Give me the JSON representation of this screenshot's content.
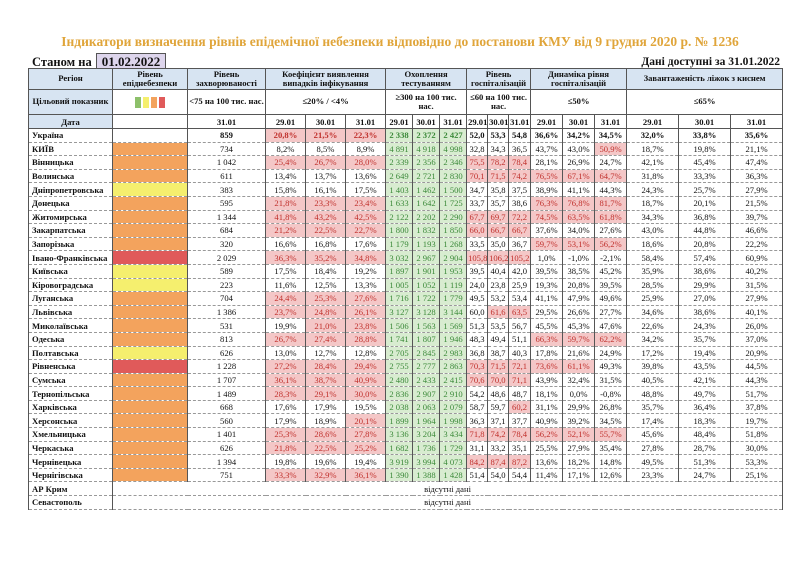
{
  "title": "Індикатори визначення рівнів епідемічної небезпеки відповідно до постанови КМУ від 9 грудня 2020 р. № 1236",
  "as_of_label": "Станом на",
  "as_of_date": "01.02.2022",
  "data_available": "Дані доступні за 31.01.2022",
  "headers": {
    "region": "Регіон",
    "level": "Рівень епіднебезпеки",
    "cases": "Рівень захворюваності",
    "infection": "Коефіцієнт виявлення випадків інфікування",
    "testing": "Охоплення тестуванням",
    "hosp": "Рівень госпіталізацій",
    "dynamics": "Динаміка рівня госпіталізацій",
    "oxygen": "Завантаженість ліжок з киснем"
  },
  "targets": {
    "label": "Цільовий показник",
    "cases": "<75 на 100 тис. нас.",
    "infection": "≤20% / <4%",
    "testing": "≥300 на 100 тис. нас.",
    "hosp": "≤60 на 100 тис. нас.",
    "dynamics": "≤50%",
    "oxygen": "≤65%"
  },
  "level_colors": {
    "green": "#8dc06a",
    "yellow": "#f5ef6e",
    "orange": "#f3a35d",
    "red": "#e05a5a"
  },
  "date_row": {
    "label": "Дата",
    "cases": "31.01",
    "d1": "29.01",
    "d2": "30.01",
    "d3": "31.01"
  },
  "no_data": "відсутні дані",
  "rows": [
    {
      "name": "Україна",
      "level": "",
      "cases": "859",
      "inf": [
        "20,8%",
        "21,5%",
        "22,3%"
      ],
      "test": [
        "2 338",
        "2 372",
        "2 427"
      ],
      "hosp": [
        "52,0",
        "53,3",
        "54,8"
      ],
      "dyn": [
        "36,6%",
        "34,2%",
        "34,5%"
      ],
      "oxy": [
        "32,0%",
        "33,8%",
        "35,6%"
      ],
      "infR": [
        1,
        1,
        1
      ],
      "hospR": [
        0,
        0,
        0
      ],
      "dynR": [
        0,
        0,
        0
      ]
    },
    {
      "name": "КИЇВ",
      "level": "orange",
      "cases": "734",
      "inf": [
        "8,2%",
        "8,5%",
        "8,9%"
      ],
      "test": [
        "4 891",
        "4 918",
        "4 998"
      ],
      "hosp": [
        "32,8",
        "34,3",
        "36,5"
      ],
      "dyn": [
        "43,7%",
        "43,0%",
        "50,9%"
      ],
      "oxy": [
        "18,7%",
        "19,8%",
        "21,1%"
      ],
      "infR": [
        0,
        0,
        0
      ],
      "hospR": [
        0,
        0,
        0
      ],
      "dynR": [
        0,
        0,
        1
      ]
    },
    {
      "name": "Вінницька",
      "level": "orange",
      "cases": "1 042",
      "inf": [
        "25,4%",
        "26,7%",
        "28,0%"
      ],
      "test": [
        "2 339",
        "2 356",
        "2 346"
      ],
      "hosp": [
        "75,5",
        "78,2",
        "78,4"
      ],
      "dyn": [
        "28,1%",
        "26,9%",
        "24,7%"
      ],
      "oxy": [
        "42,1%",
        "45,4%",
        "47,4%"
      ],
      "infR": [
        1,
        1,
        1
      ],
      "hospR": [
        1,
        1,
        1
      ],
      "dynR": [
        0,
        0,
        0
      ]
    },
    {
      "name": "Волинська",
      "level": "orange",
      "cases": "611",
      "inf": [
        "13,4%",
        "13,7%",
        "13,6%"
      ],
      "test": [
        "2 649",
        "2 721",
        "2 830"
      ],
      "hosp": [
        "70,1",
        "71,5",
        "74,2"
      ],
      "dyn": [
        "76,5%",
        "67,1%",
        "64,7%"
      ],
      "oxy": [
        "31,8%",
        "33,3%",
        "36,3%"
      ],
      "infR": [
        0,
        0,
        0
      ],
      "hospR": [
        1,
        1,
        1
      ],
      "dynR": [
        1,
        1,
        1
      ]
    },
    {
      "name": "Дніпропетровська",
      "level": "yellow",
      "cases": "383",
      "inf": [
        "15,8%",
        "16,1%",
        "17,5%"
      ],
      "test": [
        "1 403",
        "1 462",
        "1 500"
      ],
      "hosp": [
        "34,7",
        "35,8",
        "37,5"
      ],
      "dyn": [
        "38,9%",
        "41,1%",
        "44,3%"
      ],
      "oxy": [
        "24,3%",
        "25,7%",
        "27,9%"
      ],
      "infR": [
        0,
        0,
        0
      ],
      "hospR": [
        0,
        0,
        0
      ],
      "dynR": [
        0,
        0,
        0
      ]
    },
    {
      "name": "Донецька",
      "level": "orange",
      "cases": "595",
      "inf": [
        "21,8%",
        "23,3%",
        "23,4%"
      ],
      "test": [
        "1 633",
        "1 642",
        "1 725"
      ],
      "hosp": [
        "33,7",
        "35,7",
        "38,6"
      ],
      "dyn": [
        "76,3%",
        "76,8%",
        "81,7%"
      ],
      "oxy": [
        "18,7%",
        "20,1%",
        "21,5%"
      ],
      "infR": [
        1,
        1,
        1
      ],
      "hospR": [
        0,
        0,
        0
      ],
      "dynR": [
        1,
        1,
        1
      ]
    },
    {
      "name": "Житомирська",
      "level": "orange",
      "cases": "1 344",
      "inf": [
        "41,8%",
        "43,2%",
        "42,5%"
      ],
      "test": [
        "2 122",
        "2 202",
        "2 290"
      ],
      "hosp": [
        "67,7",
        "69,7",
        "72,2"
      ],
      "dyn": [
        "74,5%",
        "63,5%",
        "61,8%"
      ],
      "oxy": [
        "34,3%",
        "36,8%",
        "39,7%"
      ],
      "infR": [
        1,
        1,
        1
      ],
      "hospR": [
        1,
        1,
        1
      ],
      "dynR": [
        1,
        1,
        1
      ]
    },
    {
      "name": "Закарпатська",
      "level": "orange",
      "cases": "684",
      "inf": [
        "21,2%",
        "22,5%",
        "22,7%"
      ],
      "test": [
        "1 800",
        "1 832",
        "1 850"
      ],
      "hosp": [
        "66,0",
        "66,7",
        "66,7"
      ],
      "dyn": [
        "37,6%",
        "34,0%",
        "27,6%"
      ],
      "oxy": [
        "43,0%",
        "44,8%",
        "46,6%"
      ],
      "infR": [
        1,
        1,
        1
      ],
      "hospR": [
        1,
        1,
        1
      ],
      "dynR": [
        0,
        0,
        0
      ]
    },
    {
      "name": "Запорізька",
      "level": "orange",
      "cases": "320",
      "inf": [
        "16,6%",
        "16,8%",
        "17,6%"
      ],
      "test": [
        "1 179",
        "1 193",
        "1 268"
      ],
      "hosp": [
        "33,5",
        "35,0",
        "36,7"
      ],
      "dyn": [
        "59,7%",
        "53,1%",
        "56,2%"
      ],
      "oxy": [
        "18,6%",
        "20,8%",
        "22,2%"
      ],
      "infR": [
        0,
        0,
        0
      ],
      "hospR": [
        0,
        0,
        0
      ],
      "dynR": [
        1,
        1,
        1
      ]
    },
    {
      "name": "Івано-Франківська",
      "level": "red",
      "cases": "2 029",
      "inf": [
        "36,3%",
        "35,2%",
        "34,8%"
      ],
      "test": [
        "3 032",
        "2 967",
        "2 904"
      ],
      "hosp": [
        "105,8",
        "106,2",
        "105,2"
      ],
      "dyn": [
        "1,0%",
        "-1,0%",
        "-2,1%"
      ],
      "oxy": [
        "58,4%",
        "57,4%",
        "60,9%"
      ],
      "infR": [
        1,
        1,
        1
      ],
      "hospR": [
        1,
        1,
        1
      ],
      "dynR": [
        0,
        0,
        0
      ]
    },
    {
      "name": "Київська",
      "level": "yellow",
      "cases": "589",
      "inf": [
        "17,5%",
        "18,4%",
        "19,2%"
      ],
      "test": [
        "1 897",
        "1 901",
        "1 953"
      ],
      "hosp": [
        "39,5",
        "40,4",
        "42,0"
      ],
      "dyn": [
        "39,5%",
        "38,5%",
        "45,2%"
      ],
      "oxy": [
        "35,9%",
        "38,6%",
        "40,2%"
      ],
      "infR": [
        0,
        0,
        0
      ],
      "hospR": [
        0,
        0,
        0
      ],
      "dynR": [
        0,
        0,
        0
      ]
    },
    {
      "name": "Кіровоградська",
      "level": "yellow",
      "cases": "223",
      "inf": [
        "11,6%",
        "12,5%",
        "13,3%"
      ],
      "test": [
        "1 005",
        "1 052",
        "1 119"
      ],
      "hosp": [
        "24,0",
        "23,8",
        "25,9"
      ],
      "dyn": [
        "19,3%",
        "20,8%",
        "39,5%"
      ],
      "oxy": [
        "28,5%",
        "29,9%",
        "31,5%"
      ],
      "infR": [
        0,
        0,
        0
      ],
      "hospR": [
        0,
        0,
        0
      ],
      "dynR": [
        0,
        0,
        0
      ]
    },
    {
      "name": "Луганська",
      "level": "orange",
      "cases": "704",
      "inf": [
        "24,4%",
        "25,3%",
        "27,6%"
      ],
      "test": [
        "1 716",
        "1 722",
        "1 779"
      ],
      "hosp": [
        "49,5",
        "53,2",
        "53,4"
      ],
      "dyn": [
        "41,1%",
        "47,9%",
        "49,6%"
      ],
      "oxy": [
        "25,9%",
        "27,0%",
        "27,9%"
      ],
      "infR": [
        1,
        1,
        1
      ],
      "hospR": [
        0,
        0,
        0
      ],
      "dynR": [
        0,
        0,
        0
      ]
    },
    {
      "name": "Львівська",
      "level": "orange",
      "cases": "1 386",
      "inf": [
        "23,7%",
        "24,8%",
        "26,1%"
      ],
      "test": [
        "3 127",
        "3 128",
        "3 144"
      ],
      "hosp": [
        "60,0",
        "61,6",
        "63,5"
      ],
      "dyn": [
        "29,5%",
        "26,6%",
        "27,7%"
      ],
      "oxy": [
        "34,6%",
        "38,6%",
        "40,1%"
      ],
      "infR": [
        1,
        1,
        1
      ],
      "hospR": [
        0,
        1,
        1
      ],
      "dynR": [
        0,
        0,
        0
      ]
    },
    {
      "name": "Миколаївська",
      "level": "orange",
      "cases": "531",
      "inf": [
        "19,9%",
        "21,0%",
        "23,8%"
      ],
      "test": [
        "1 506",
        "1 563",
        "1 569"
      ],
      "hosp": [
        "51,3",
        "53,5",
        "56,7"
      ],
      "dyn": [
        "45,5%",
        "45,3%",
        "47,6%"
      ],
      "oxy": [
        "22,6%",
        "24,3%",
        "26,0%"
      ],
      "infR": [
        0,
        1,
        1
      ],
      "hospR": [
        0,
        0,
        0
      ],
      "dynR": [
        0,
        0,
        0
      ]
    },
    {
      "name": "Одеська",
      "level": "orange",
      "cases": "813",
      "inf": [
        "26,7%",
        "27,4%",
        "28,8%"
      ],
      "test": [
        "1 741",
        "1 807",
        "1 946"
      ],
      "hosp": [
        "48,3",
        "49,4",
        "51,1"
      ],
      "dyn": [
        "66,3%",
        "59,7%",
        "62,2%"
      ],
      "oxy": [
        "34,2%",
        "35,7%",
        "37,0%"
      ],
      "infR": [
        1,
        1,
        1
      ],
      "hospR": [
        0,
        0,
        0
      ],
      "dynR": [
        1,
        1,
        1
      ]
    },
    {
      "name": "Полтавська",
      "level": "yellow",
      "cases": "626",
      "inf": [
        "13,0%",
        "12,7%",
        "12,8%"
      ],
      "test": [
        "2 705",
        "2 845",
        "2 983"
      ],
      "hosp": [
        "36,8",
        "38,7",
        "40,3"
      ],
      "dyn": [
        "17,8%",
        "21,6%",
        "24,9%"
      ],
      "oxy": [
        "17,2%",
        "19,4%",
        "20,9%"
      ],
      "infR": [
        0,
        0,
        0
      ],
      "hospR": [
        0,
        0,
        0
      ],
      "dynR": [
        0,
        0,
        0
      ]
    },
    {
      "name": "Рівненська",
      "level": "red",
      "cases": "1 228",
      "inf": [
        "27,2%",
        "28,4%",
        "29,4%"
      ],
      "test": [
        "2 755",
        "2 777",
        "2 863"
      ],
      "hosp": [
        "70,3",
        "71,5",
        "72,1"
      ],
      "dyn": [
        "73,6%",
        "61,1%",
        "49,3%"
      ],
      "oxy": [
        "39,8%",
        "43,5%",
        "44,5%"
      ],
      "infR": [
        1,
        1,
        1
      ],
      "hospR": [
        1,
        1,
        1
      ],
      "dynR": [
        1,
        1,
        0
      ]
    },
    {
      "name": "Сумська",
      "level": "orange",
      "cases": "1 707",
      "inf": [
        "36,1%",
        "38,7%",
        "40,9%"
      ],
      "test": [
        "2 480",
        "2 433",
        "2 415"
      ],
      "hosp": [
        "70,6",
        "70,0",
        "71,1"
      ],
      "dyn": [
        "43,9%",
        "32,4%",
        "31,5%"
      ],
      "oxy": [
        "40,5%",
        "42,1%",
        "44,3%"
      ],
      "infR": [
        1,
        1,
        1
      ],
      "hospR": [
        1,
        1,
        1
      ],
      "dynR": [
        0,
        0,
        0
      ]
    },
    {
      "name": "Тернопільська",
      "level": "orange",
      "cases": "1 489",
      "inf": [
        "28,3%",
        "29,1%",
        "30,0%"
      ],
      "test": [
        "2 836",
        "2 907",
        "2 910"
      ],
      "hosp": [
        "54,2",
        "48,6",
        "48,7"
      ],
      "dyn": [
        "18,1%",
        "0,0%",
        "-0,8%"
      ],
      "oxy": [
        "48,8%",
        "49,7%",
        "51,7%"
      ],
      "infR": [
        1,
        1,
        1
      ],
      "hospR": [
        0,
        0,
        0
      ],
      "dynR": [
        0,
        0,
        0
      ]
    },
    {
      "name": "Харківська",
      "level": "orange",
      "cases": "668",
      "inf": [
        "17,6%",
        "17,9%",
        "19,5%"
      ],
      "test": [
        "2 038",
        "2 063",
        "2 079"
      ],
      "hosp": [
        "58,7",
        "59,7",
        "60,2"
      ],
      "dyn": [
        "31,1%",
        "29,9%",
        "26,8%"
      ],
      "oxy": [
        "35,7%",
        "36,4%",
        "37,8%"
      ],
      "infR": [
        0,
        0,
        0
      ],
      "hospR": [
        0,
        0,
        1
      ],
      "dynR": [
        0,
        0,
        0
      ]
    },
    {
      "name": "Херсонська",
      "level": "orange",
      "cases": "560",
      "inf": [
        "17,9%",
        "18,9%",
        "20,1%"
      ],
      "test": [
        "1 899",
        "1 964",
        "1 998"
      ],
      "hosp": [
        "36,3",
        "37,1",
        "37,7"
      ],
      "dyn": [
        "40,9%",
        "39,2%",
        "34,5%"
      ],
      "oxy": [
        "17,4%",
        "18,3%",
        "19,7%"
      ],
      "infR": [
        0,
        0,
        1
      ],
      "hospR": [
        0,
        0,
        0
      ],
      "dynR": [
        0,
        0,
        0
      ]
    },
    {
      "name": "Хмельницька",
      "level": "orange",
      "cases": "1 401",
      "inf": [
        "25,3%",
        "28,6%",
        "27,8%"
      ],
      "test": [
        "3 136",
        "3 204",
        "3 434"
      ],
      "hosp": [
        "71,8",
        "74,2",
        "78,4"
      ],
      "dyn": [
        "56,2%",
        "52,1%",
        "55,7%"
      ],
      "oxy": [
        "45,6%",
        "48,4%",
        "51,8%"
      ],
      "infR": [
        1,
        1,
        1
      ],
      "hospR": [
        1,
        1,
        1
      ],
      "dynR": [
        1,
        1,
        1
      ]
    },
    {
      "name": "Черкаська",
      "level": "orange",
      "cases": "626",
      "inf": [
        "21,8%",
        "22,5%",
        "25,2%"
      ],
      "test": [
        "1 682",
        "1 736",
        "1 729"
      ],
      "hosp": [
        "31,1",
        "33,2",
        "35,1"
      ],
      "dyn": [
        "25,5%",
        "27,9%",
        "35,4%"
      ],
      "oxy": [
        "27,8%",
        "28,7%",
        "30,0%"
      ],
      "infR": [
        1,
        1,
        1
      ],
      "hospR": [
        0,
        0,
        0
      ],
      "dynR": [
        0,
        0,
        0
      ]
    },
    {
      "name": "Чернівецька",
      "level": "orange",
      "cases": "1 394",
      "inf": [
        "19,8%",
        "19,6%",
        "19,4%"
      ],
      "test": [
        "3 919",
        "3 994",
        "4 073"
      ],
      "hosp": [
        "84,2",
        "87,4",
        "87,2"
      ],
      "dyn": [
        "13,6%",
        "18,2%",
        "14,8%"
      ],
      "oxy": [
        "49,5%",
        "51,3%",
        "53,3%"
      ],
      "infR": [
        0,
        0,
        0
      ],
      "hospR": [
        1,
        1,
        1
      ],
      "dynR": [
        0,
        0,
        0
      ]
    },
    {
      "name": "Чернігівська",
      "level": "orange",
      "cases": "751",
      "inf": [
        "33,3%",
        "32,9%",
        "36,1%"
      ],
      "test": [
        "1 390",
        "1 388",
        "1 428"
      ],
      "hosp": [
        "51,4",
        "54,0",
        "54,4"
      ],
      "dyn": [
        "11,4%",
        "17,1%",
        "12,6%"
      ],
      "oxy": [
        "23,3%",
        "24,7%",
        "25,1%"
      ],
      "infR": [
        1,
        1,
        1
      ],
      "hospR": [
        0,
        0,
        0
      ],
      "dynR": [
        0,
        0,
        0
      ]
    }
  ],
  "no_data_rows": [
    "АР Крим",
    "Севастополь"
  ]
}
